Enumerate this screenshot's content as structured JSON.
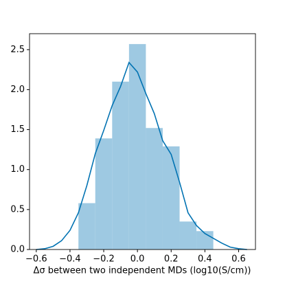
{
  "chart_data": {
    "type": "histogram",
    "xlabel": "Δσ between two independent MDs (log10(S/cm))",
    "bins": [
      -0.35,
      -0.25,
      -0.15,
      -0.05,
      0.05,
      0.15,
      0.25,
      0.35,
      0.45
    ],
    "values": [
      0.58,
      1.39,
      2.1,
      2.57,
      1.52,
      1.29,
      0.35,
      0.23
    ],
    "color": "#93c3df",
    "kde": {
      "color": "#0072b2",
      "x": [
        -0.6,
        -0.55,
        -0.5,
        -0.45,
        -0.4,
        -0.35,
        -0.3,
        -0.25,
        -0.2,
        -0.15,
        -0.1,
        -0.05,
        0.0,
        0.05,
        0.1,
        0.15,
        0.2,
        0.25,
        0.3,
        0.35,
        0.4,
        0.45,
        0.5,
        0.55,
        0.6,
        0.65
      ],
      "y": [
        0.0,
        0.01,
        0.04,
        0.11,
        0.24,
        0.46,
        0.8,
        1.2,
        1.49,
        1.8,
        2.04,
        2.34,
        2.22,
        1.95,
        1.7,
        1.36,
        1.19,
        0.84,
        0.46,
        0.3,
        0.2,
        0.14,
        0.08,
        0.03,
        0.01,
        0.0
      ]
    },
    "xlim": [
      -0.64,
      0.7
    ],
    "ylim": [
      0,
      2.7
    ],
    "xticks": [
      {
        "value": -0.6,
        "label": "−0.6"
      },
      {
        "value": -0.4,
        "label": "−0.4"
      },
      {
        "value": -0.2,
        "label": "−0.2"
      },
      {
        "value": 0.0,
        "label": "0.0"
      },
      0.2,
      0.4,
      0.6
    ],
    "yticks": [
      {
        "value": 0.0,
        "label": "0.0"
      },
      0.5,
      {
        "value": 1.0,
        "label": "1.0"
      },
      1.5,
      {
        "value": 2.0,
        "label": "2.0"
      },
      2.5
    ]
  }
}
